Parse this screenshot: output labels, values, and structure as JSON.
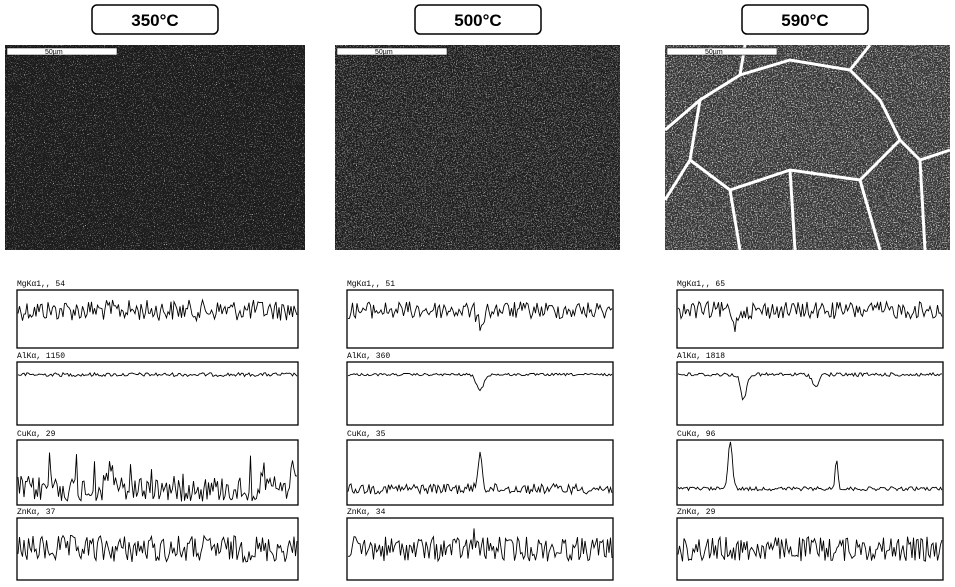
{
  "panels": [
    {
      "title": "350°C",
      "scale_bar": "50µm",
      "scans": [
        "MgKα1,, 54",
        "AlKα, 1150",
        "CuKα, 29",
        "ZnKα, 37"
      ]
    },
    {
      "title": "500°C",
      "scale_bar": "50µm",
      "scans": [
        "MgKα1,, 51",
        "AlKα, 360",
        "CuKα, 35",
        "ZnKα, 34"
      ]
    },
    {
      "title": "590°C",
      "scale_bar": "50µm",
      "scans": [
        "MgKα1,, 65",
        "AlKα, 1818",
        "CuKα, 96",
        "ZnKα, 29"
      ]
    }
  ]
}
